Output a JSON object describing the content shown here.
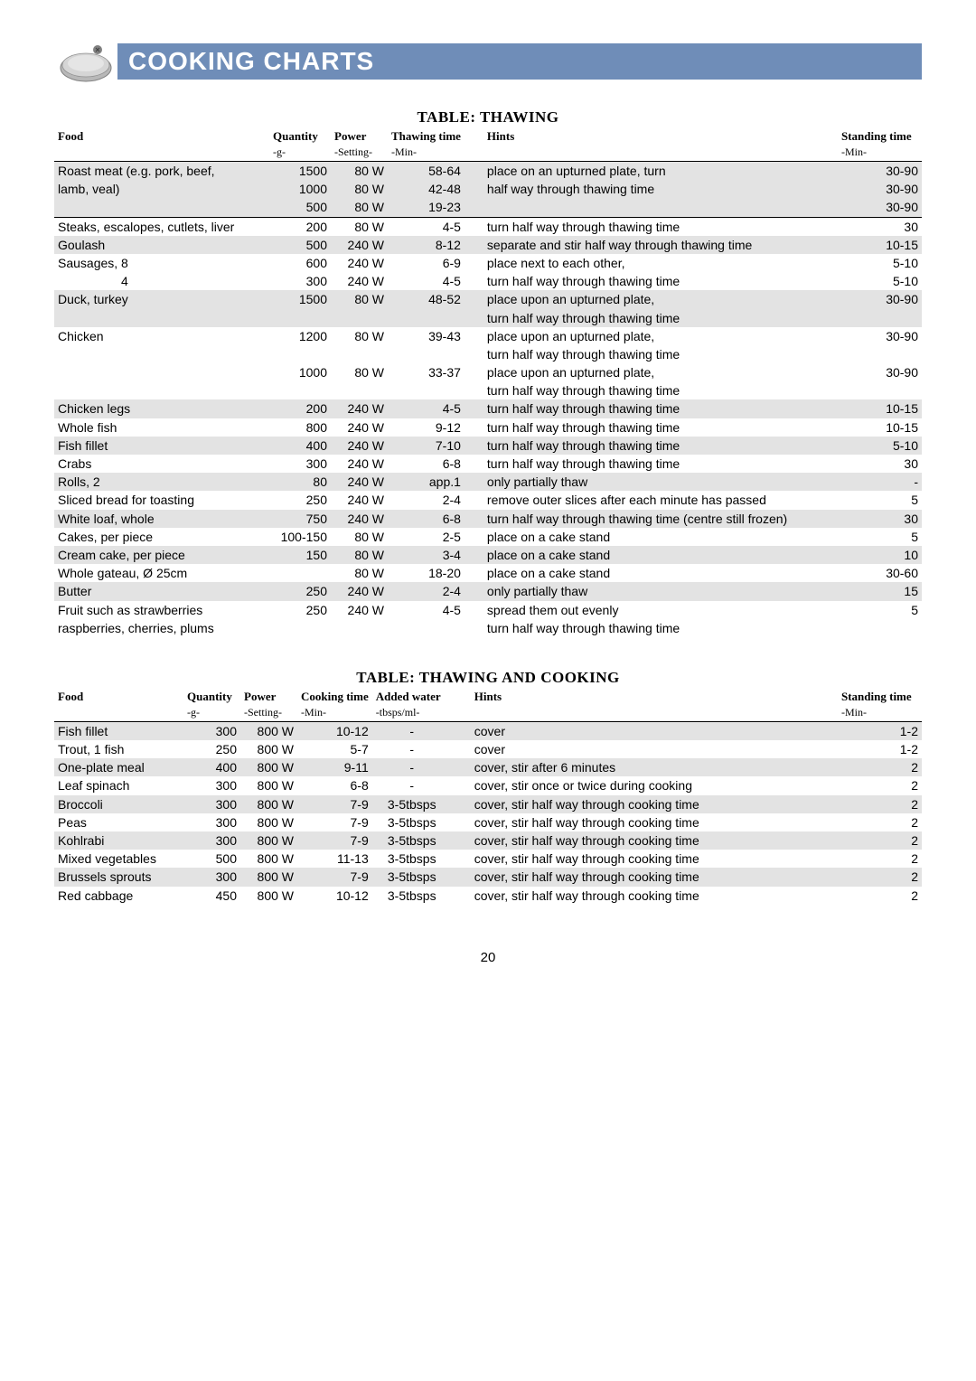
{
  "banner": {
    "title": "COOKING CHARTS"
  },
  "page_number": "20",
  "table1": {
    "title": "TABLE: THAWING",
    "headers": {
      "food": "Food",
      "qty": "Quantity",
      "power": "Power",
      "thaw": "Thawing time",
      "hints": "Hints",
      "stand": "Standing time",
      "qty_sub": "-g-",
      "power_sub": "-Setting-",
      "thaw_sub": "-Min-",
      "stand_sub": "-Min-"
    },
    "rows": [
      {
        "shade": true,
        "top": true,
        "food": "Roast meat (e.g. pork, beef,",
        "qty": "1500",
        "power": "80 W",
        "time": "58-64",
        "hints": "place on an upturned plate, turn",
        "stand": "30-90"
      },
      {
        "shade": true,
        "food": "lamb, veal)",
        "qty": "1000",
        "power": "80 W",
        "time": "42-48",
        "hints": "half way through thawing time",
        "stand": "30-90"
      },
      {
        "shade": true,
        "food": "",
        "qty": "500",
        "power": "80 W",
        "time": "19-23",
        "hints": "",
        "stand": "30-90"
      },
      {
        "top": true,
        "food": "Steaks, escalopes, cutlets, liver",
        "qty": "200",
        "power": "80 W",
        "time": "4-5",
        "hints": "turn half way through thawing time",
        "stand": "30"
      },
      {
        "shade": true,
        "food": "Goulash",
        "qty": "500",
        "power": "240 W",
        "time": "8-12",
        "hints": "separate and stir half way through thawing time",
        "stand": "10-15"
      },
      {
        "food": "Sausages,    8",
        "qty": "600",
        "power": "240 W",
        "time": "6-9",
        "hints": "place next to each other,",
        "stand": "5-10"
      },
      {
        "food": "                  4",
        "qty": "300",
        "power": "240 W",
        "time": "4-5",
        "hints": "turn half way through thawing time",
        "stand": "5-10"
      },
      {
        "shade": true,
        "food": "Duck, turkey",
        "qty": "1500",
        "power": "80 W",
        "time": "48-52",
        "hints": "place upon an upturned plate,",
        "stand": "30-90"
      },
      {
        "shade": true,
        "food": "",
        "qty": "",
        "power": "",
        "time": "",
        "hints": "turn half way through thawing time",
        "stand": ""
      },
      {
        "food": "Chicken",
        "qty": "1200",
        "power": "80 W",
        "time": "39-43",
        "hints": "place upon an upturned plate,",
        "stand": "30-90"
      },
      {
        "food": "",
        "qty": "",
        "power": "",
        "time": "",
        "hints": "turn half way through thawing time",
        "stand": ""
      },
      {
        "food": "",
        "qty": "1000",
        "power": "80 W",
        "time": "33-37",
        "hints": "place upon an upturned plate,",
        "stand": "30-90"
      },
      {
        "food": "",
        "qty": "",
        "power": "",
        "time": "",
        "hints": "turn half way through thawing time",
        "stand": ""
      },
      {
        "shade": true,
        "food": "Chicken legs",
        "qty": "200",
        "power": "240 W",
        "time": "4-5",
        "hints": "turn half way through thawing time",
        "stand": "10-15"
      },
      {
        "food": "Whole fish",
        "qty": "800",
        "power": "240 W",
        "time": "9-12",
        "hints": "turn half way through thawing time",
        "stand": "10-15"
      },
      {
        "shade": true,
        "food": "Fish fillet",
        "qty": "400",
        "power": "240 W",
        "time": "7-10",
        "hints": "turn half way through thawing time",
        "stand": "5-10"
      },
      {
        "food": "Crabs",
        "qty": "300",
        "power": "240 W",
        "time": "6-8",
        "hints": "turn half way through thawing time",
        "stand": "30"
      },
      {
        "shade": true,
        "food": "Rolls, 2",
        "qty": "80",
        "power": "240 W",
        "time": "app.1",
        "hints": "only partially thaw",
        "stand": "-"
      },
      {
        "food": "Sliced bread for toasting",
        "qty": "250",
        "power": "240 W",
        "time": "2-4",
        "hints": "remove outer slices after each minute has passed",
        "stand": "5"
      },
      {
        "shade": true,
        "food": "White loaf, whole",
        "qty": "750",
        "power": "240 W",
        "time": "6-8",
        "hints": "turn half way through thawing time (centre still frozen)",
        "stand": "30"
      },
      {
        "food": "Cakes, per piece",
        "qty": "100-150",
        "power": "80 W",
        "time": "2-5",
        "hints": "place on a cake stand",
        "stand": "5"
      },
      {
        "shade": true,
        "food": "Cream cake, per piece",
        "qty": "150",
        "power": "80 W",
        "time": "3-4",
        "hints": "place on a cake stand",
        "stand": "10"
      },
      {
        "food": "Whole gateau, Ø 25cm",
        "qty": "",
        "power": "80 W",
        "time": "18-20",
        "hints": "place on a cake stand",
        "stand": "30-60"
      },
      {
        "shade": true,
        "food": "Butter",
        "qty": "250",
        "power": "240 W",
        "time": "2-4",
        "hints": "only partially thaw",
        "stand": "15"
      },
      {
        "food": "Fruit such as strawberries",
        "qty": "250",
        "power": "240 W",
        "time": "4-5",
        "hints": "spread them out evenly",
        "stand": "5"
      },
      {
        "food": "raspberries, cherries, plums",
        "qty": "",
        "power": "",
        "time": "",
        "hints": "turn half way through thawing time",
        "stand": ""
      }
    ]
  },
  "table2": {
    "title": "TABLE: THAWING AND COOKING",
    "headers": {
      "food": "Food",
      "qty": "Quantity",
      "power": "Power",
      "cook": "Cooking time",
      "water": "Added water",
      "hints": "Hints",
      "stand": "Standing time",
      "qty_sub": "-g-",
      "power_sub": "-Setting-",
      "cook_sub": "-Min-",
      "water_sub": "-tbsps/ml-",
      "stand_sub": "-Min-"
    },
    "rows": [
      {
        "shade": true,
        "top": true,
        "food": "Fish fillet",
        "qty": "300",
        "power": "800 W",
        "time": "10-12",
        "water": "-",
        "hints": "cover",
        "stand": "1-2"
      },
      {
        "food": "Trout, 1 fish",
        "qty": "250",
        "power": "800 W",
        "time": "5-7",
        "water": "-",
        "hints": "cover",
        "stand": "1-2"
      },
      {
        "shade": true,
        "food": "One-plate meal",
        "qty": "400",
        "power": "800 W",
        "time": "9-11",
        "water": "-",
        "hints": "cover, stir after 6 minutes",
        "stand": "2"
      },
      {
        "food": "Leaf spinach",
        "qty": "300",
        "power": "800 W",
        "time": "6-8",
        "water": "-",
        "hints": "cover, stir once or twice during cooking",
        "stand": "2"
      },
      {
        "shade": true,
        "food": "Broccoli",
        "qty": "300",
        "power": "800 W",
        "time": "7-9",
        "water": "3-5tbsps",
        "hints": "cover, stir half way through cooking time",
        "stand": "2"
      },
      {
        "food": "Peas",
        "qty": "300",
        "power": "800 W",
        "time": "7-9",
        "water": "3-5tbsps",
        "hints": "cover, stir half way through cooking time",
        "stand": "2"
      },
      {
        "shade": true,
        "food": "Kohlrabi",
        "qty": "300",
        "power": "800 W",
        "time": "7-9",
        "water": "3-5tbsps",
        "hints": "cover, stir half way through cooking time",
        "stand": "2"
      },
      {
        "food": "Mixed vegetables",
        "qty": "500",
        "power": "800 W",
        "time": "11-13",
        "water": "3-5tbsps",
        "hints": "cover, stir half way through cooking time",
        "stand": "2"
      },
      {
        "shade": true,
        "food": "Brussels sprouts",
        "qty": "300",
        "power": "800 W",
        "time": "7-9",
        "water": "3-5tbsps",
        "hints": "cover, stir half way through cooking time",
        "stand": "2"
      },
      {
        "food": "Red cabbage",
        "qty": "450",
        "power": "800 W",
        "time": "10-12",
        "water": "3-5tbsps",
        "hints": "cover, stir half way through cooking time",
        "stand": "2"
      }
    ]
  }
}
